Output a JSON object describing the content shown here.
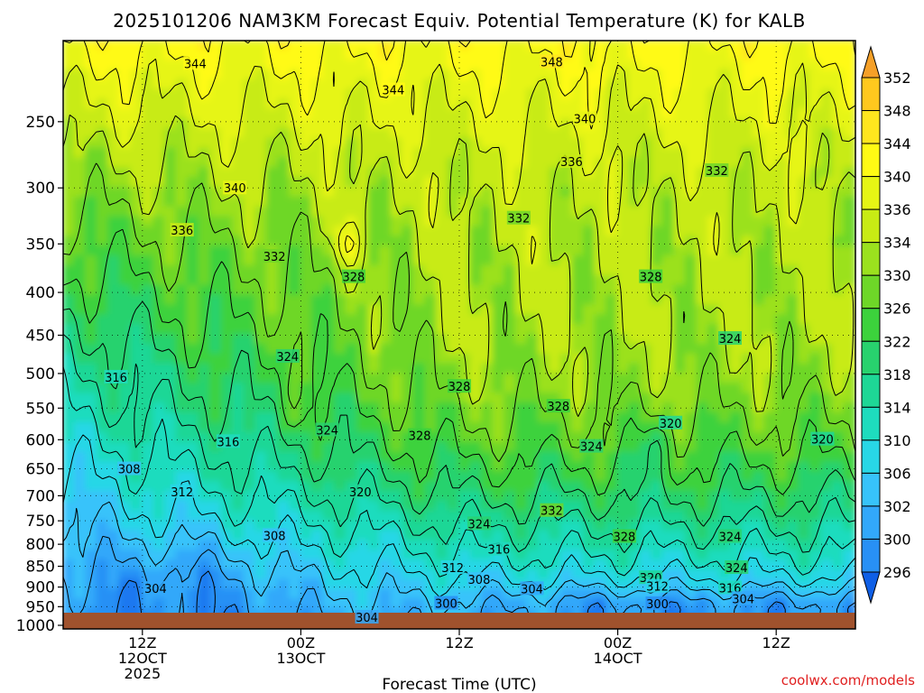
{
  "chart_data": {
    "type": "heatmap",
    "title": "2025101206 NAM3KM Forecast Equiv. Potential Temperature (K) for KALB",
    "xlabel": "Forecast Time (UTC)",
    "ylabel": "",
    "y_scale": "log-pressure",
    "y_inverted": true,
    "ylim": [
      1010,
      200
    ],
    "y_ticks": [
      250,
      300,
      350,
      400,
      450,
      500,
      550,
      600,
      650,
      700,
      750,
      800,
      850,
      900,
      950,
      1000
    ],
    "y_tick_labels": [
      "250",
      "300",
      "350",
      "400",
      "450",
      "500",
      "550",
      "600",
      "650",
      "700",
      "750",
      "800",
      "850",
      "900",
      "950",
      "1000"
    ],
    "x_ticks": [
      {
        "hours": 6,
        "lines": [
          "12Z",
          "12OCT",
          "2025"
        ]
      },
      {
        "hours": 18,
        "lines": [
          "00Z",
          "13OCT"
        ]
      },
      {
        "hours": 30,
        "lines": [
          "12Z"
        ]
      },
      {
        "hours": 42,
        "lines": [
          "00Z",
          "14OCT"
        ]
      },
      {
        "hours": 54,
        "lines": [
          "12Z"
        ]
      }
    ],
    "xlim_hours": [
      0,
      60
    ],
    "grid": true,
    "colorbar": {
      "orientation": "vertical",
      "placement": "right",
      "levels": [
        296,
        300,
        302,
        306,
        310,
        314,
        318,
        322,
        326,
        330,
        334,
        336,
        340,
        344,
        348,
        352
      ],
      "labels": [
        "296",
        "300",
        "302",
        "306",
        "310",
        "314",
        "318",
        "322",
        "326",
        "330",
        "334",
        "336",
        "340",
        "344",
        "348",
        "352"
      ],
      "colors": [
        "#0f5fe6",
        "#1e78f0",
        "#2890f5",
        "#32a8fa",
        "#37c3fa",
        "#28d7e6",
        "#1edcbe",
        "#1ed796",
        "#28d26e",
        "#3cd23c",
        "#6ed728",
        "#9be11e",
        "#c8eb14",
        "#e6f514",
        "#fffa14",
        "#ffe61e",
        "#ffc81e",
        "#f5a028"
      ]
    },
    "contours": {
      "variable": "Equivalent potential temperature (K)",
      "levels": [
        296,
        300,
        304,
        308,
        312,
        316,
        320,
        324,
        328,
        332,
        336,
        340,
        344,
        348
      ],
      "labeled_values": [
        {
          "value": 344,
          "hours": 10.0,
          "pressure": 213
        },
        {
          "value": 348,
          "hours": 37.0,
          "pressure": 212
        },
        {
          "value": 344,
          "hours": 25.0,
          "pressure": 229
        },
        {
          "value": 340,
          "hours": 39.5,
          "pressure": 248
        },
        {
          "value": 336,
          "hours": 38.5,
          "pressure": 279
        },
        {
          "value": 332,
          "hours": 49.5,
          "pressure": 286
        },
        {
          "value": 340,
          "hours": 13.0,
          "pressure": 300
        },
        {
          "value": 332,
          "hours": 34.5,
          "pressure": 326
        },
        {
          "value": 336,
          "hours": 9.0,
          "pressure": 337
        },
        {
          "value": 332,
          "hours": 16.0,
          "pressure": 362
        },
        {
          "value": 328,
          "hours": 22.0,
          "pressure": 383
        },
        {
          "value": 328,
          "hours": 44.5,
          "pressure": 383
        },
        {
          "value": 324,
          "hours": 50.5,
          "pressure": 454
        },
        {
          "value": 324,
          "hours": 17.0,
          "pressure": 477
        },
        {
          "value": 316,
          "hours": 4.0,
          "pressure": 505
        },
        {
          "value": 328,
          "hours": 30.0,
          "pressure": 518
        },
        {
          "value": 328,
          "hours": 37.5,
          "pressure": 547
        },
        {
          "value": 324,
          "hours": 20.0,
          "pressure": 584
        },
        {
          "value": 328,
          "hours": 27.0,
          "pressure": 593
        },
        {
          "value": 320,
          "hours": 46.0,
          "pressure": 573
        },
        {
          "value": 320,
          "hours": 57.5,
          "pressure": 599
        },
        {
          "value": 316,
          "hours": 12.5,
          "pressure": 603
        },
        {
          "value": 324,
          "hours": 40.0,
          "pressure": 611
        },
        {
          "value": 308,
          "hours": 5.0,
          "pressure": 650
        },
        {
          "value": 312,
          "hours": 9.0,
          "pressure": 692
        },
        {
          "value": 320,
          "hours": 22.5,
          "pressure": 692
        },
        {
          "value": 332,
          "hours": 37.0,
          "pressure": 729
        },
        {
          "value": 324,
          "hours": 31.5,
          "pressure": 756
        },
        {
          "value": 308,
          "hours": 16.0,
          "pressure": 781
        },
        {
          "value": 328,
          "hours": 42.5,
          "pressure": 783
        },
        {
          "value": 324,
          "hours": 50.5,
          "pressure": 783
        },
        {
          "value": 316,
          "hours": 33.0,
          "pressure": 811
        },
        {
          "value": 324,
          "hours": 51.0,
          "pressure": 853
        },
        {
          "value": 312,
          "hours": 29.5,
          "pressure": 853
        },
        {
          "value": 308,
          "hours": 31.5,
          "pressure": 881
        },
        {
          "value": 320,
          "hours": 44.5,
          "pressure": 877
        },
        {
          "value": 304,
          "hours": 7.0,
          "pressure": 903
        },
        {
          "value": 304,
          "hours": 35.5,
          "pressure": 904
        },
        {
          "value": 312,
          "hours": 45.0,
          "pressure": 898
        },
        {
          "value": 316,
          "hours": 50.5,
          "pressure": 902
        },
        {
          "value": 304,
          "hours": 51.5,
          "pressure": 929
        },
        {
          "value": 300,
          "hours": 29.0,
          "pressure": 941
        },
        {
          "value": 300,
          "hours": 45.0,
          "pressure": 942
        },
        {
          "value": 304,
          "hours": 23.0,
          "pressure": 978
        }
      ],
      "closed_highs": [
        {
          "hours": 21.5,
          "pressure": 351
        },
        {
          "hours": 44.8,
          "pressure": 606
        },
        {
          "hours": 17.5,
          "pressure": 540
        }
      ]
    },
    "ground": {
      "color": "#a0522d",
      "pressure_top": 1010
    }
  },
  "credit": "coolwx.com/models"
}
